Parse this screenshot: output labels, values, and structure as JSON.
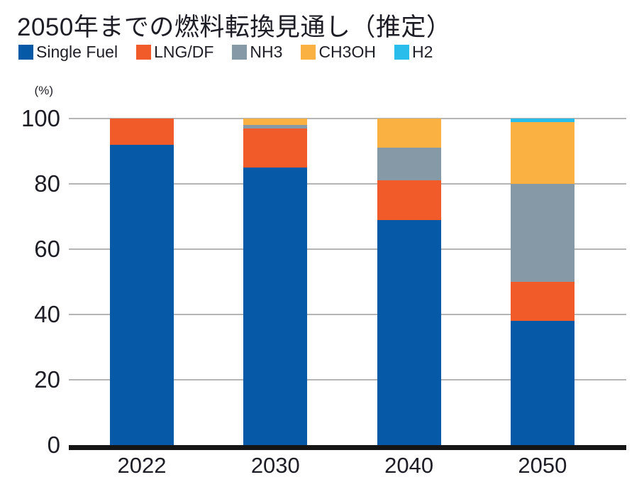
{
  "title": "2050年までの燃料転換見通し（推定）",
  "chart_data": {
    "type": "bar",
    "stacked": true,
    "title": "2050年までの燃料転換見通し（推定）",
    "y_unit_label": "(%)",
    "categories": [
      "2022",
      "2030",
      "2040",
      "2050"
    ],
    "series": [
      {
        "name": "Single Fuel",
        "color": "#0559a7",
        "values": [
          92,
          85,
          69,
          38
        ]
      },
      {
        "name": "LNG/DF",
        "color": "#f15a29",
        "values": [
          8,
          12,
          12,
          12
        ]
      },
      {
        "name": "NH3",
        "color": "#8599a7",
        "values": [
          0,
          1,
          10,
          30
        ]
      },
      {
        "name": "CH3OH",
        "color": "#fbb042",
        "values": [
          0,
          2,
          9,
          19
        ]
      },
      {
        "name": "H2",
        "color": "#29bdeb",
        "values": [
          0,
          0,
          0,
          1
        ]
      }
    ],
    "ylim": [
      0,
      100
    ],
    "yticks": [
      0,
      20,
      40,
      60,
      80,
      100
    ],
    "grid": true,
    "legend_position": "top"
  },
  "colors": {
    "grid": "#b5b5b5",
    "axis": "#151515",
    "text": "#1d1d25"
  }
}
